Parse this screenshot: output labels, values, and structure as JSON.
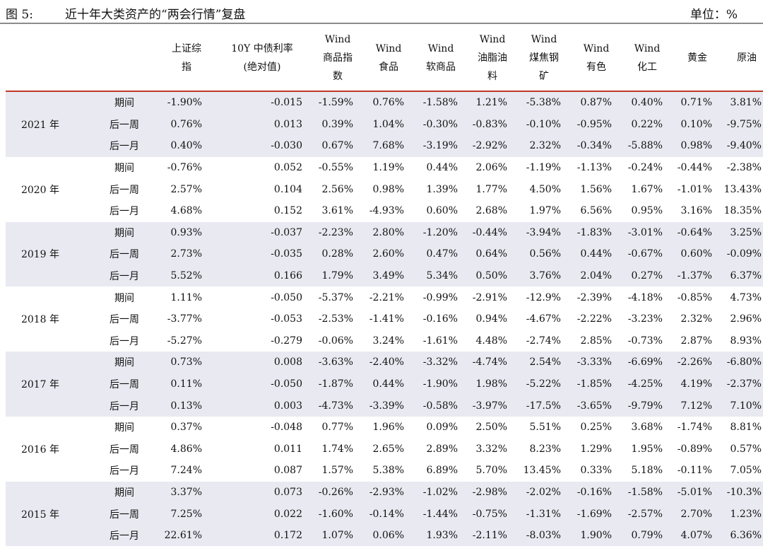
{
  "title": {
    "figure_no": "图 5:",
    "text": "近十年大类资产的“两会行情”复盘",
    "unit": "单位：%"
  },
  "table": {
    "headers": [
      [
        ""
      ],
      [
        ""
      ],
      [
        "上证综",
        "指"
      ],
      [
        "10Y 中债利率",
        "(绝对值)"
      ],
      [
        "Wind",
        "商品指",
        "数"
      ],
      [
        "Wind",
        "食品"
      ],
      [
        "Wind",
        "软商品"
      ],
      [
        "Wind",
        "油脂油",
        "料"
      ],
      [
        "Wind",
        "煤焦钢",
        "矿"
      ],
      [
        "Wind",
        "有色"
      ],
      [
        "Wind",
        "化工"
      ],
      [
        "黄金"
      ],
      [
        "原油"
      ]
    ],
    "groups": [
      {
        "year": "2021 年",
        "rows": [
          {
            "period": "期间",
            "values": [
              "-1.90%",
              "-0.015",
              "-1.59%",
              "0.76%",
              "-1.58%",
              "1.21%",
              "-5.38%",
              "0.87%",
              "0.40%",
              "0.71%",
              "3.81%"
            ]
          },
          {
            "period": "后一周",
            "values": [
              "0.76%",
              "0.013",
              "0.39%",
              "1.04%",
              "-0.30%",
              "-0.83%",
              "-0.10%",
              "-0.95%",
              "0.22%",
              "0.10%",
              "-9.75%"
            ]
          },
          {
            "period": "后一月",
            "values": [
              "0.40%",
              "-0.030",
              "0.67%",
              "7.68%",
              "-3.19%",
              "-2.92%",
              "2.32%",
              "-0.34%",
              "-5.88%",
              "0.98%",
              "-9.40%"
            ]
          }
        ]
      },
      {
        "year": "2020 年",
        "rows": [
          {
            "period": "期间",
            "values": [
              "-0.76%",
              "0.052",
              "-0.55%",
              "1.19%",
              "0.44%",
              "2.06%",
              "-1.19%",
              "-1.13%",
              "-0.24%",
              "-0.44%",
              "-2.38%"
            ]
          },
          {
            "period": "后一周",
            "values": [
              "2.57%",
              "0.104",
              "2.56%",
              "0.98%",
              "1.39%",
              "1.77%",
              "4.50%",
              "1.56%",
              "1.67%",
              "-1.01%",
              "13.43%"
            ]
          },
          {
            "period": "后一月",
            "values": [
              "4.68%",
              "0.152",
              "3.61%",
              "-4.93%",
              "0.60%",
              "2.68%",
              "1.97%",
              "6.56%",
              "0.95%",
              "3.16%",
              "18.35%"
            ]
          }
        ]
      },
      {
        "year": "2019 年",
        "rows": [
          {
            "period": "期间",
            "values": [
              "0.93%",
              "-0.037",
              "-2.23%",
              "2.80%",
              "-1.20%",
              "-0.44%",
              "-3.94%",
              "-1.83%",
              "-3.01%",
              "-0.64%",
              "3.25%"
            ]
          },
          {
            "period": "后一周",
            "values": [
              "2.73%",
              "-0.035",
              "0.28%",
              "2.60%",
              "0.47%",
              "0.64%",
              "0.56%",
              "0.44%",
              "-0.67%",
              "0.60%",
              "-0.09%"
            ]
          },
          {
            "period": "后一月",
            "values": [
              "5.52%",
              "0.166",
              "1.79%",
              "3.49%",
              "5.34%",
              "0.50%",
              "3.76%",
              "2.04%",
              "0.27%",
              "-1.37%",
              "6.37%"
            ]
          }
        ]
      },
      {
        "year": "2018 年",
        "rows": [
          {
            "period": "期间",
            "values": [
              "1.11%",
              "-0.050",
              "-5.37%",
              "-2.21%",
              "-0.99%",
              "-2.91%",
              "-12.9%",
              "-2.39%",
              "-4.18%",
              "-0.85%",
              "4.73%"
            ]
          },
          {
            "period": "后一周",
            "values": [
              "-3.77%",
              "-0.053",
              "-2.53%",
              "-1.41%",
              "-0.16%",
              "0.94%",
              "-4.67%",
              "-2.22%",
              "-3.23%",
              "2.32%",
              "2.96%"
            ]
          },
          {
            "period": "后一月",
            "values": [
              "-5.27%",
              "-0.279",
              "-0.06%",
              "3.24%",
              "-1.61%",
              "4.48%",
              "-2.74%",
              "2.85%",
              "-0.73%",
              "2.87%",
              "8.93%"
            ]
          }
        ]
      },
      {
        "year": "2017 年",
        "rows": [
          {
            "period": "期间",
            "values": [
              "0.73%",
              "0.008",
              "-3.63%",
              "-2.40%",
              "-3.32%",
              "-4.74%",
              "2.54%",
              "-3.33%",
              "-6.69%",
              "-2.26%",
              "-6.80%"
            ]
          },
          {
            "period": "后一周",
            "values": [
              "0.11%",
              "-0.050",
              "-1.87%",
              "0.44%",
              "-1.90%",
              "1.98%",
              "-5.22%",
              "-1.85%",
              "-4.25%",
              "4.19%",
              "-2.37%"
            ]
          },
          {
            "period": "后一月",
            "values": [
              "0.13%",
              "0.003",
              "-4.73%",
              "-3.39%",
              "-0.58%",
              "-3.97%",
              "-17.5%",
              "-3.65%",
              "-9.79%",
              "7.12%",
              "7.10%"
            ]
          }
        ]
      },
      {
        "year": "2016 年",
        "rows": [
          {
            "period": "期间",
            "values": [
              "0.37%",
              "-0.048",
              "0.77%",
              "1.96%",
              "0.09%",
              "2.50%",
              "5.51%",
              "0.25%",
              "3.68%",
              "-1.74%",
              "8.81%"
            ]
          },
          {
            "period": "后一周",
            "values": [
              "4.86%",
              "0.011",
              "1.74%",
              "2.65%",
              "2.89%",
              "3.32%",
              "8.23%",
              "1.29%",
              "1.95%",
              "-0.89%",
              "0.57%"
            ]
          },
          {
            "period": "后一月",
            "values": [
              "7.24%",
              "0.087",
              "1.57%",
              "5.38%",
              "6.89%",
              "5.70%",
              "13.45%",
              "0.33%",
              "5.18%",
              "-0.11%",
              "7.05%"
            ]
          }
        ]
      },
      {
        "year": "2015 年",
        "rows": [
          {
            "period": "期间",
            "values": [
              "3.37%",
              "0.073",
              "-0.26%",
              "-2.93%",
              "-1.02%",
              "-2.98%",
              "-2.02%",
              "-0.16%",
              "-1.58%",
              "-5.01%",
              "-10.3%"
            ]
          },
          {
            "period": "后一周",
            "values": [
              "7.25%",
              "0.022",
              "-1.60%",
              "-0.14%",
              "-1.44%",
              "-0.75%",
              "-1.31%",
              "-1.69%",
              "-2.57%",
              "2.70%",
              "1.23%"
            ]
          },
          {
            "period": "后一月",
            "values": [
              "22.61%",
              "0.172",
              "1.07%",
              "0.06%",
              "1.93%",
              "-2.11%",
              "-8.03%",
              "1.90%",
              "0.79%",
              "4.07%",
              "6.36%"
            ]
          }
        ]
      }
    ]
  }
}
